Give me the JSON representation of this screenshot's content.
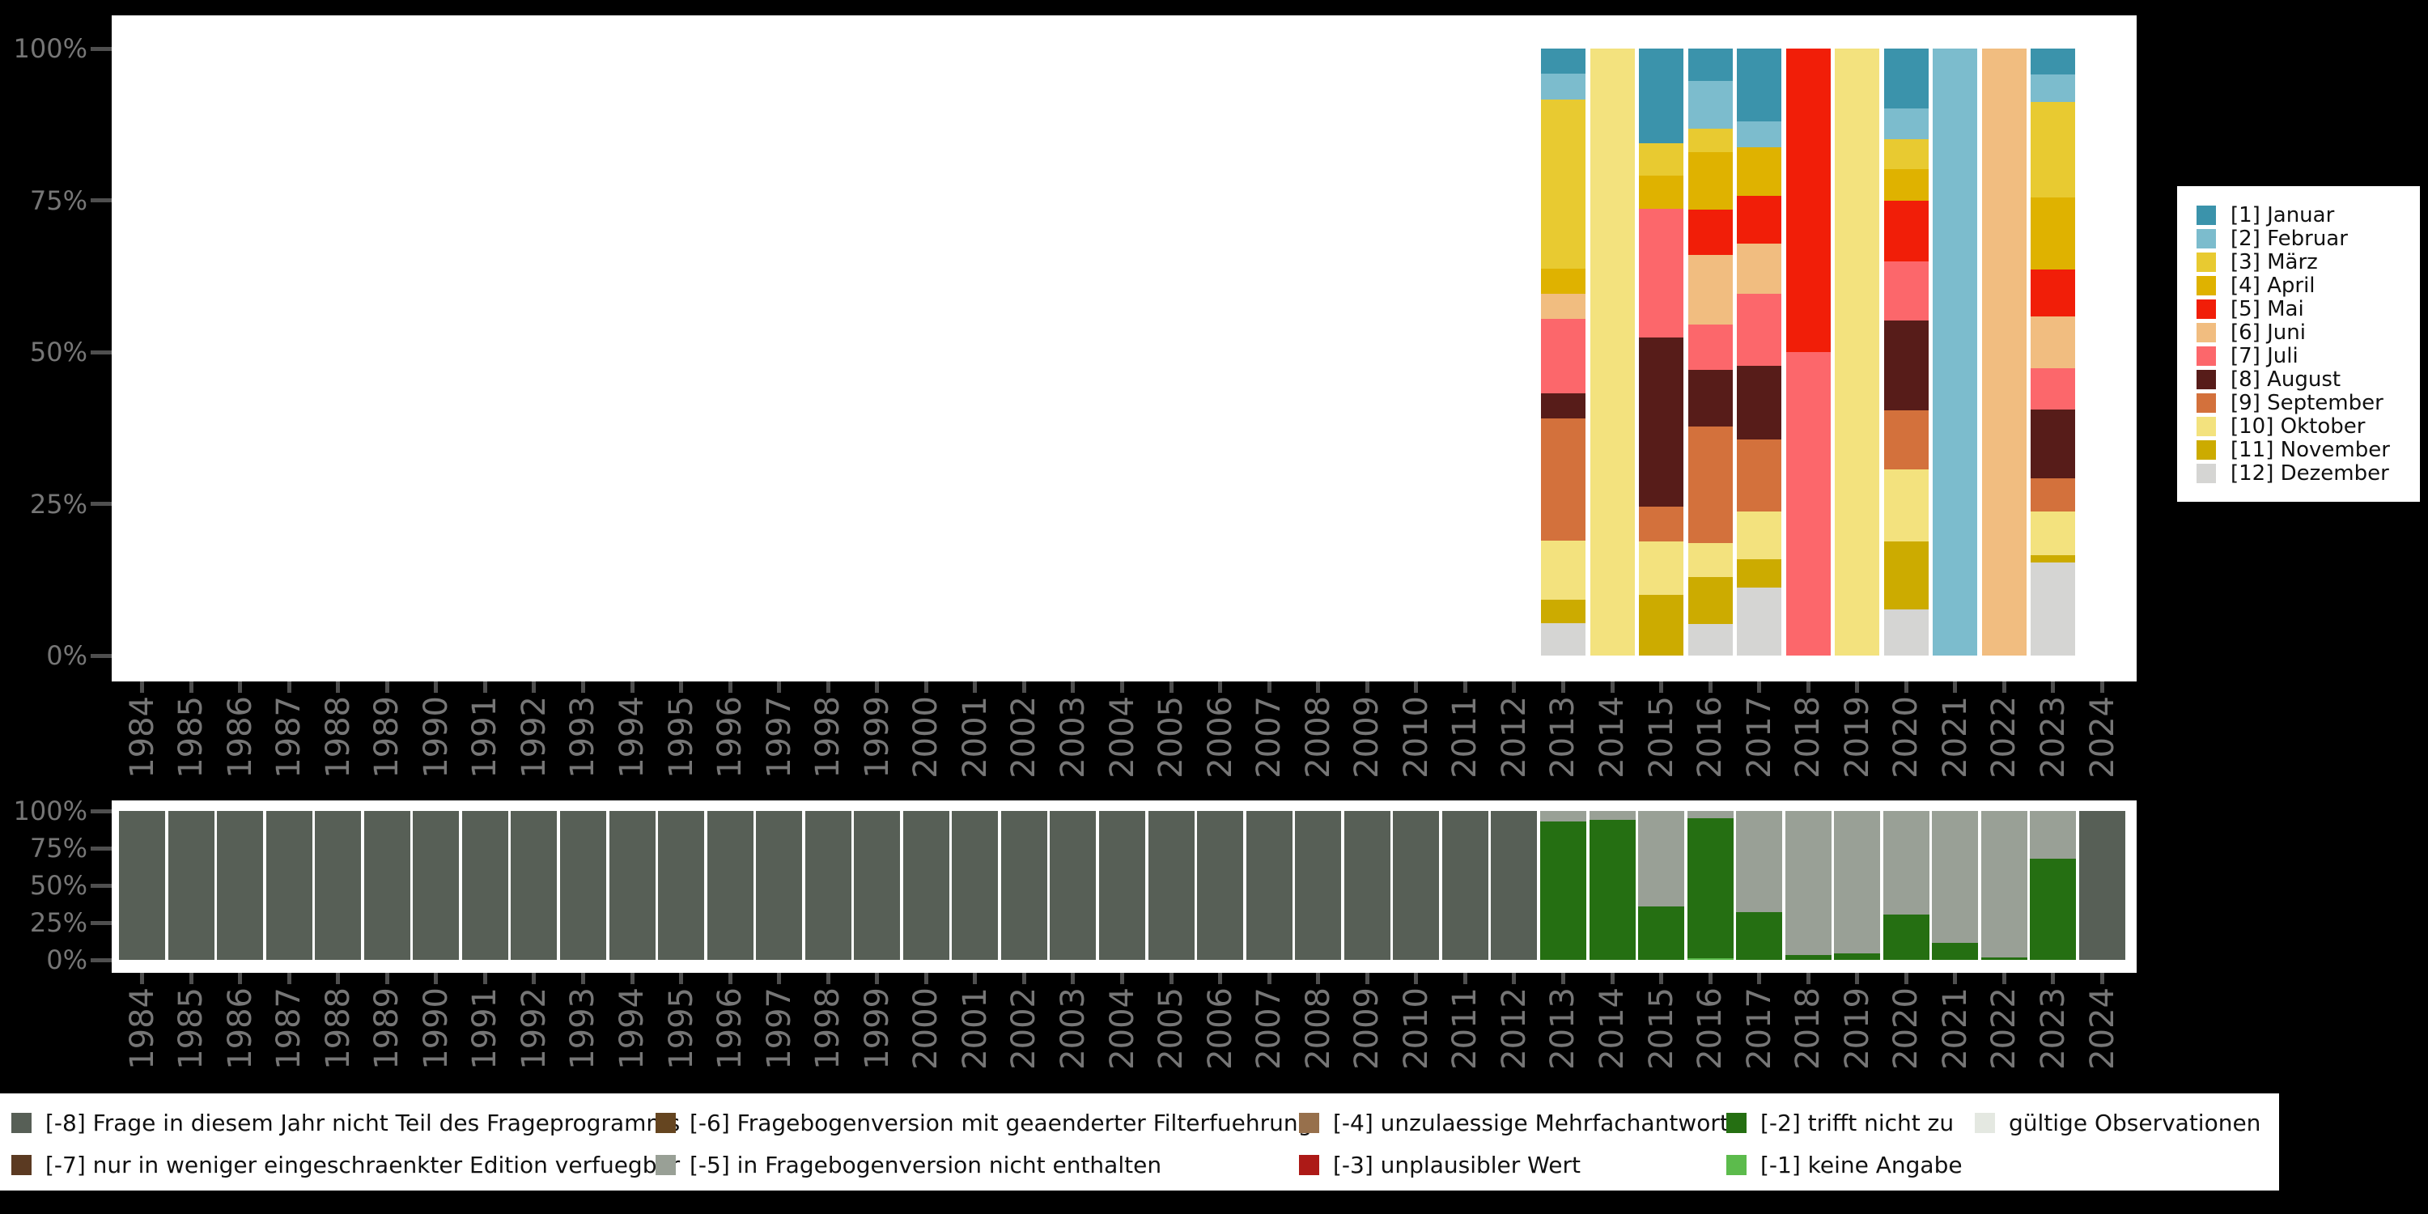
{
  "page": {
    "background": "#000000",
    "panel_background": "#ffffff"
  },
  "axes": {
    "y_tick_labels": [
      "100%",
      "75%",
      "50%",
      "25%",
      "0%"
    ],
    "years": [
      "1984",
      "1985",
      "1986",
      "1987",
      "1988",
      "1989",
      "1990",
      "1991",
      "1992",
      "1993",
      "1994",
      "1995",
      "1996",
      "1997",
      "1998",
      "1999",
      "2000",
      "2001",
      "2002",
      "2003",
      "2004",
      "2005",
      "2006",
      "2007",
      "2008",
      "2009",
      "2010",
      "2011",
      "2012",
      "2013",
      "2014",
      "2015",
      "2016",
      "2017",
      "2018",
      "2019",
      "2020",
      "2021",
      "2022",
      "2023",
      "2024"
    ],
    "text_color": "#767676",
    "tick_color": "#4f4f4f"
  },
  "month_legend": {
    "items": [
      {
        "code": "1",
        "label": "[1] Januar",
        "color": "#3b93ab"
      },
      {
        "code": "2",
        "label": "[2] Februar",
        "color": "#7cbccd"
      },
      {
        "code": "3",
        "label": "[3] März",
        "color": "#e8ca31"
      },
      {
        "code": "4",
        "label": "[4] April",
        "color": "#dfb200"
      },
      {
        "code": "5",
        "label": "[5] Mai",
        "color": "#f11e08"
      },
      {
        "code": "6",
        "label": "[6] Juni",
        "color": "#f1bd80"
      },
      {
        "code": "7",
        "label": "[7] Juli",
        "color": "#fc676b"
      },
      {
        "code": "8",
        "label": "[8] August",
        "color": "#571c19"
      },
      {
        "code": "9",
        "label": "[9] September",
        "color": "#d3713c"
      },
      {
        "code": "10",
        "label": "[10] Oktober",
        "color": "#f3e27e"
      },
      {
        "code": "11",
        "label": "[11] November",
        "color": "#ccab00"
      },
      {
        "code": "12",
        "label": "[12] Dezember",
        "color": "#d5d5d3"
      }
    ]
  },
  "missing_legend": {
    "items": [
      {
        "key": "-8",
        "label": "[-8] Frage in diesem Jahr nicht Teil des Frageprogramms",
        "color": "#575f56",
        "col": 0,
        "row": 0
      },
      {
        "key": "-7",
        "label": "[-7] nur in weniger eingeschraenkter Edition verfuegbar",
        "color": "#5b3a22",
        "col": 0,
        "row": 1
      },
      {
        "key": "-6",
        "label": "[-6] Fragebogenversion mit geaenderter Filterfuehrung",
        "color": "#654520",
        "col": 1,
        "row": 0
      },
      {
        "key": "-5",
        "label": "[-5] in Fragebogenversion nicht enthalten",
        "color": "#99a096",
        "col": 1,
        "row": 1
      },
      {
        "key": "-4",
        "label": "[-4] unzulaessige Mehrfachantwort",
        "color": "#97704c",
        "col": 2,
        "row": 0
      },
      {
        "key": "-3",
        "label": "[-3] unplausibler Wert",
        "color": "#ad1a17",
        "col": 2,
        "row": 1
      },
      {
        "key": "-2",
        "label": "[-2] trifft nicht zu",
        "color": "#256f12",
        "col": 3,
        "row": 0
      },
      {
        "key": "-1",
        "label": "[-1] keine Angabe",
        "color": "#5cbb4c",
        "col": 3,
        "row": 1
      },
      {
        "key": "valid",
        "label": "gültige Observationen",
        "color": "#e4e8e1",
        "col": 4,
        "row": 0
      }
    ]
  },
  "chart_data": [
    {
      "type": "bar",
      "stacked": true,
      "unit": "percent",
      "title": "",
      "xlabel": "",
      "ylabel": "",
      "ylim": [
        0,
        100
      ],
      "y_ticks": [
        "0%",
        "25%",
        "50%",
        "75%",
        "100%"
      ],
      "grid": false,
      "legend_position": "right",
      "x_range_years": [
        "1984",
        "2024"
      ],
      "stack_order_bottom_to_top": [
        "12",
        "11",
        "10",
        "9",
        "8",
        "7",
        "6",
        "5",
        "4",
        "3",
        "2",
        "1"
      ],
      "values_by_year": {
        "2013": {
          "1": 4.1,
          "2": 4.3,
          "3": 27.9,
          "4": 4.1,
          "6": 4.1,
          "7": 12.3,
          "8": 4.1,
          "9": 20.1,
          "10": 9.8,
          "11": 3.9,
          "12": 5.3
        },
        "2014": {
          "10": 100
        },
        "2015": {
          "1": 15.6,
          "3": 5.3,
          "4": 5.5,
          "7": 21.2,
          "8": 27.9,
          "9": 5.7,
          "10": 8.8,
          "11": 10.0
        },
        "2016": {
          "1": 5.3,
          "2": 7.9,
          "3": 3.9,
          "4": 9.4,
          "5": 7.5,
          "6": 11.4,
          "7": 7.5,
          "8": 9.4,
          "9": 19.2,
          "10": 5.5,
          "11": 7.8,
          "12": 5.2
        },
        "2017": {
          "1": 12.0,
          "2": 4.3,
          "4": 7.9,
          "5": 7.9,
          "6": 8.3,
          "7": 11.8,
          "8": 12.2,
          "9": 11.8,
          "10": 7.9,
          "11": 4.7,
          "12": 11.2
        },
        "2018": {
          "5": 50,
          "7": 50
        },
        "2019": {
          "10": 100
        },
        "2020": {
          "1": 9.8,
          "2": 5.1,
          "3": 5.0,
          "4": 5.1,
          "5": 10.0,
          "7": 9.8,
          "8": 14.8,
          "9": 9.7,
          "10": 11.9,
          "11": 11.2,
          "12": 7.6
        },
        "2021": {
          "2": 100
        },
        "2022": {
          "6": 100
        },
        "2023": {
          "1": 4.3,
          "2": 4.5,
          "3": 15.7,
          "4": 11.9,
          "5": 7.7,
          "6": 8.6,
          "7": 6.7,
          "8": 11.4,
          "9": 5.5,
          "10": 7.1,
          "11": 1.2,
          "12": 15.4
        }
      }
    },
    {
      "type": "bar",
      "stacked": true,
      "unit": "percent",
      "title": "",
      "xlabel": "",
      "ylabel": "",
      "ylim": [
        0,
        100
      ],
      "y_ticks": [
        "0%",
        "25%",
        "50%",
        "75%",
        "100%"
      ],
      "grid": false,
      "legend_position": "bottom",
      "stack_order_bottom_to_top": [
        "-1",
        "-2",
        "-5",
        "-8"
      ],
      "values_by_year": {
        "1984": {
          "-8": 100
        },
        "1985": {
          "-8": 100
        },
        "1986": {
          "-8": 100
        },
        "1987": {
          "-8": 100
        },
        "1988": {
          "-8": 100
        },
        "1989": {
          "-8": 100
        },
        "1990": {
          "-8": 100
        },
        "1991": {
          "-8": 100
        },
        "1992": {
          "-8": 100
        },
        "1993": {
          "-8": 100
        },
        "1994": {
          "-8": 100
        },
        "1995": {
          "-8": 100
        },
        "1996": {
          "-8": 100
        },
        "1997": {
          "-8": 100
        },
        "1998": {
          "-8": 100
        },
        "1999": {
          "-8": 100
        },
        "2000": {
          "-8": 100
        },
        "2001": {
          "-8": 100
        },
        "2002": {
          "-8": 100
        },
        "2003": {
          "-8": 100
        },
        "2004": {
          "-8": 100
        },
        "2005": {
          "-8": 100
        },
        "2006": {
          "-8": 100
        },
        "2007": {
          "-8": 100
        },
        "2008": {
          "-8": 100
        },
        "2009": {
          "-8": 100
        },
        "2010": {
          "-8": 100
        },
        "2011": {
          "-8": 100
        },
        "2012": {
          "-8": 100
        },
        "2013": {
          "-2": 93,
          "-5": 7
        },
        "2014": {
          "-2": 94,
          "-5": 6
        },
        "2015": {
          "-2": 36,
          "-5": 64
        },
        "2016": {
          "-1": 1,
          "-2": 94,
          "-5": 5
        },
        "2017": {
          "-2": 32,
          "-5": 68
        },
        "2018": {
          "-2": 3.5,
          "-5": 96.5
        },
        "2019": {
          "-2": 4.5,
          "-5": 95.5
        },
        "2020": {
          "-2": 30.5,
          "-5": 69.5
        },
        "2021": {
          "-2": 11.5,
          "-5": 88.5
        },
        "2022": {
          "-2": 1.5,
          "-5": 98.5
        },
        "2023": {
          "-2": 68,
          "-5": 32
        },
        "2024": {
          "-8": 100
        }
      }
    }
  ]
}
